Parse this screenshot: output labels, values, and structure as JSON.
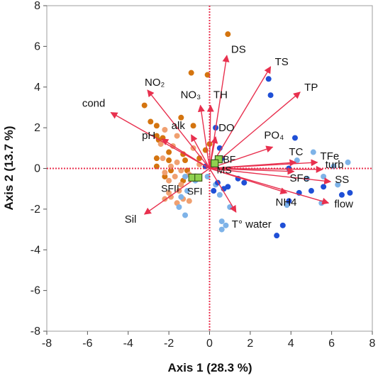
{
  "chart_data": {
    "type": "scatter",
    "title": "",
    "xlabel": "Axis 1  (28.3 %)",
    "ylabel": "Axis 2 (13.7 %)",
    "xlim": [
      -8,
      8
    ],
    "ylim": [
      -8,
      8
    ],
    "xticks": [
      "-8",
      "-6",
      "-4",
      "-2",
      "0",
      "2",
      "4",
      "6",
      "8"
    ],
    "yticks": [
      "-8",
      "-6",
      "-4",
      "-2",
      "0",
      "2",
      "4",
      "6",
      "8"
    ],
    "grid": false,
    "colors": {
      "vector": "#e8304e",
      "axis_line": "#e8304e",
      "frame": "#9e9e9e",
      "dark_orange": "#d4740f",
      "light_orange": "#f0a070",
      "light_blue": "#7eb3e8",
      "dark_blue": "#1f4fd6",
      "site_fill": "#8fd14f",
      "site_stroke": "#3a5a1a"
    },
    "point_groups": [
      {
        "color_key": "dark_orange",
        "points": [
          [
            0.9,
            6.6
          ],
          [
            -0.9,
            4.7
          ],
          [
            -0.1,
            4.6
          ],
          [
            -3.2,
            3.1
          ],
          [
            -1.4,
            2.5
          ],
          [
            -0.8,
            2.1
          ],
          [
            -2.9,
            2.3
          ],
          [
            -2.6,
            2.1
          ],
          [
            -2.3,
            1.5
          ],
          [
            -2.5,
            1.4
          ],
          [
            -2.6,
            1.6
          ],
          [
            -2.0,
            0.8
          ],
          [
            -1.3,
            0.7
          ],
          [
            -0.5,
            0.5
          ],
          [
            -2.6,
            0.5
          ],
          [
            -2.0,
            0.4
          ],
          [
            -1.2,
            0.4
          ],
          [
            -2.6,
            0.1
          ],
          [
            -1.9,
            -0.1
          ],
          [
            -1.1,
            -0.1
          ],
          [
            -2.2,
            -0.4
          ],
          [
            -1.3,
            -0.6
          ],
          [
            0.0,
            1.2
          ],
          [
            -0.2,
            0.9
          ]
        ]
      },
      {
        "color_key": "light_orange",
        "points": [
          [
            -2.2,
            1.9
          ],
          [
            -1.6,
            1.6
          ],
          [
            -2.4,
            1.2
          ],
          [
            -1.8,
            1.1
          ],
          [
            -0.8,
            1.0
          ],
          [
            -2.3,
            0.5
          ],
          [
            -1.6,
            0.3
          ],
          [
            -0.5,
            0.2
          ],
          [
            -1.9,
            0.1
          ],
          [
            -1.4,
            -0.1
          ],
          [
            -2.2,
            -0.2
          ],
          [
            -1.7,
            -0.4
          ],
          [
            -1.0,
            -0.3
          ],
          [
            -2.0,
            -0.6
          ],
          [
            -1.4,
            -0.8
          ],
          [
            -2.0,
            -1.2
          ],
          [
            -1.5,
            -1.1
          ],
          [
            -2.2,
            -1.5
          ],
          [
            -1.9,
            -1.4
          ],
          [
            -1.6,
            -1.7
          ],
          [
            -1.3,
            -1.5
          ],
          [
            -1.0,
            -1.6
          ]
        ]
      },
      {
        "color_key": "light_blue",
        "points": [
          [
            -1.2,
            -0.4
          ],
          [
            -0.7,
            -0.6
          ],
          [
            -1.1,
            -1.1
          ],
          [
            -1.5,
            -1.9
          ],
          [
            -1.2,
            -2.3
          ],
          [
            -1.4,
            -1.4
          ],
          [
            -0.1,
            -0.4
          ],
          [
            0.3,
            -0.8
          ],
          [
            0.5,
            -1.3
          ],
          [
            1.0,
            -1.9
          ],
          [
            0.6,
            -2.6
          ],
          [
            0.8,
            -2.8
          ],
          [
            0.6,
            -3.0
          ],
          [
            3.8,
            -1.8
          ],
          [
            5.5,
            -1.7
          ],
          [
            6.1,
            0.1
          ],
          [
            6.8,
            0.3
          ],
          [
            5.1,
            0.8
          ],
          [
            4.3,
            0.4
          ],
          [
            5.6,
            -0.4
          ],
          [
            6.3,
            -0.8
          ],
          [
            4.8,
            -0.5
          ]
        ]
      },
      {
        "color_key": "dark_blue",
        "points": [
          [
            -0.2,
            0.1
          ],
          [
            0.2,
            0.3
          ],
          [
            0.6,
            0.5
          ],
          [
            0.4,
            -0.7
          ],
          [
            0.7,
            -1.0
          ],
          [
            0.9,
            -0.9
          ],
          [
            0.2,
            -1.1
          ],
          [
            1.4,
            -0.5
          ],
          [
            1.7,
            -0.7
          ],
          [
            0.5,
            1.0
          ],
          [
            0.3,
            2.0
          ],
          [
            2.9,
            4.4
          ],
          [
            3.0,
            3.6
          ],
          [
            4.2,
            1.5
          ],
          [
            4.4,
            -1.2
          ],
          [
            3.9,
            -1.6
          ],
          [
            5.0,
            -1.1
          ],
          [
            3.6,
            -2.8
          ],
          [
            3.3,
            -3.3
          ],
          [
            6.5,
            -1.3
          ],
          [
            6.9,
            -1.2
          ],
          [
            5.6,
            -0.9
          ],
          [
            3.9,
            0.0
          ]
        ]
      }
    ],
    "vectors": [
      {
        "label": "DS",
        "x": 0.85,
        "y": 5.55
      },
      {
        "label": "TS",
        "x": 3.0,
        "y": 5.0
      },
      {
        "label": "TP",
        "x": 4.45,
        "y": 3.75
      },
      {
        "label": "NO₂",
        "x": -3.05,
        "y": 3.85
      },
      {
        "label": "NO₃",
        "x": -0.45,
        "y": 3.1
      },
      {
        "label": "TH",
        "x": 0.05,
        "y": 3.1
      },
      {
        "label": "cond",
        "x": -4.85,
        "y": 2.75
      },
      {
        "label": "alk",
        "x": -0.9,
        "y": 1.65
      },
      {
        "label": "DO",
        "x": 0.3,
        "y": 1.55
      },
      {
        "label": "pH",
        "x": -2.35,
        "y": 1.45
      },
      {
        "label": "PO₄",
        "x": 3.1,
        "y": 1.05
      },
      {
        "label": "TC",
        "x": 4.25,
        "y": 0.3
      },
      {
        "label": "TFe",
        "x": 5.3,
        "y": 0.3
      },
      {
        "label": "turb",
        "x": 5.55,
        "y": -0.05
      },
      {
        "label": "SFe",
        "x": 4.15,
        "y": -0.15
      },
      {
        "label": "SS",
        "x": 5.95,
        "y": -0.65
      },
      {
        "label": "flow",
        "x": 5.85,
        "y": -1.7
      },
      {
        "label": "NH4",
        "x": 3.8,
        "y": -1.2
      },
      {
        "label": "T° water",
        "x": 1.3,
        "y": -2.15
      },
      {
        "label": "Sil",
        "x": -3.2,
        "y": -2.25
      }
    ],
    "sites": [
      {
        "label": "BF",
        "x": 0.45,
        "y": 0.45
      },
      {
        "label": "MS",
        "x": 0.25,
        "y": 0.25
      },
      {
        "label": "SFII",
        "x": -0.85,
        "y": -0.45
      },
      {
        "label": "SFI",
        "x": -0.55,
        "y": -0.45
      }
    ]
  }
}
